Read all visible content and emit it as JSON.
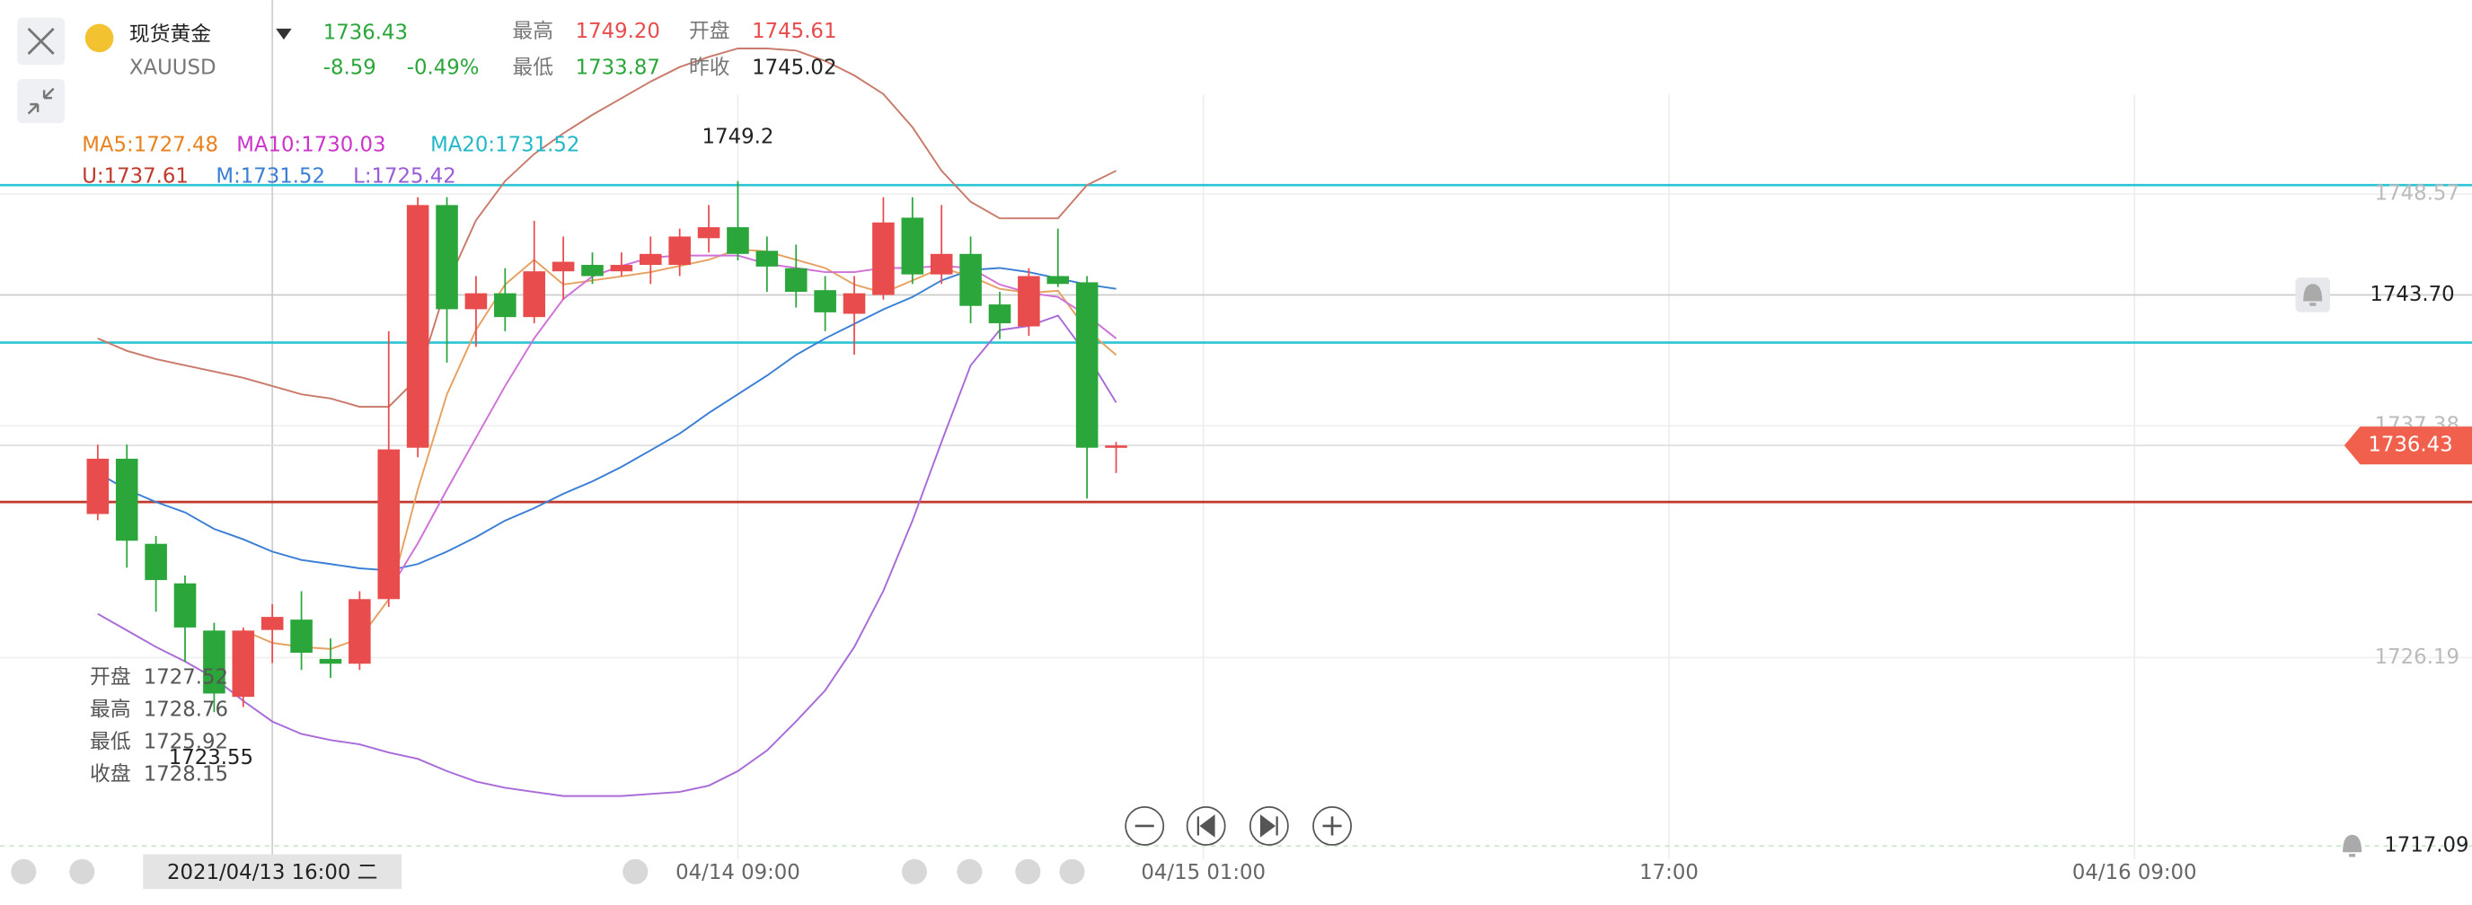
{
  "header": {
    "name": "现货黄金",
    "symbol": "XAUUSD",
    "change": "-8.59",
    "change_pct": "-0.49%",
    "high_label": "最高",
    "high": "1749.20",
    "open_label": "开盘",
    "open": "1745.61",
    "low_label": "最低",
    "low": "1733.87",
    "prev_close_label": "昨收",
    "prev_close": "1745.02"
  },
  "indicators": [
    {
      "text": "MA5:1727.48",
      "color": "#e8821e"
    },
    {
      "text": "MA10:1730.03",
      "color": "#cc33cc"
    },
    {
      "text": "MA20:1731.52",
      "color": "#22b8c8"
    },
    {
      "text": "U:1737.61",
      "color": "#c0392b"
    },
    {
      "text": "M:1731.52",
      "color": "#3a7fd5"
    },
    {
      "text": "L:1725.42",
      "color": "#9a5cd6"
    }
  ],
  "info_panel": {
    "labels": [
      "开盘",
      "最高",
      "最低",
      "收盘"
    ]
  },
  "chart_data": {
    "type": "candlestick",
    "up_color": "#e84c4c",
    "down_color": "#2aa63a",
    "xlim": [
      -3.36,
      81.6
    ],
    "ylim": [
      1714.25,
      1757.93
    ],
    "xticks": [
      {
        "value": 6,
        "label": "2021/04/13 16:00 二"
      },
      {
        "value": 22,
        "label": "04/14 09:00"
      },
      {
        "value": 38,
        "label": "04/15 01:00"
      },
      {
        "value": 54,
        "label": "17:00"
      },
      {
        "value": 70,
        "label": "04/16 09:00"
      }
    ],
    "yticks": [
      1748.57,
      1737.38,
      1726.19
    ],
    "last_price": 1736.43,
    "alerts": [
      {
        "value": 1743.7,
        "label": "1743.70"
      },
      1717.09
    ],
    "hlines": [
      {
        "value": 1749.0,
        "color": "#2bc4d4"
      },
      {
        "value": 1741.4,
        "color": "#2bc4d4"
      },
      {
        "value": 1733.7,
        "color": "#c0392b"
      }
    ],
    "open": [
      1733.12,
      1735.79,
      1731.68,
      1729.77,
      1727.49,
      1724.29,
      1727.52,
      1728.02,
      1726.12,
      1725.89,
      1729.01,
      1736.32,
      1748.04,
      1743.01,
      1743.78,
      1742.63,
      1744.84,
      1745.15,
      1744.84,
      1745.15,
      1745.15,
      1746.44,
      1746.97,
      1745.83,
      1744.99,
      1743.93,
      1742.79,
      1743.7,
      1747.43,
      1744.69,
      1745.68,
      1743.24,
      1742.18,
      1744.61,
      1744.31,
      1736.32
    ],
    "high": [
      1736.47,
      1736.47,
      1732.06,
      1730.15,
      1727.87,
      1727.64,
      1728.76,
      1729.39,
      1727.11,
      1729.39,
      1741.95,
      1748.42,
      1748.42,
      1744.61,
      1744.99,
      1747.28,
      1746.52,
      1745.75,
      1745.75,
      1746.52,
      1746.9,
      1748.04,
      1749.2,
      1746.52,
      1746.13,
      1744.61,
      1744.61,
      1748.42,
      1748.42,
      1748.04,
      1746.52,
      1743.85,
      1744.99,
      1746.9,
      1744.61,
      1736.6
    ],
    "low": [
      1732.82,
      1730.53,
      1728.4,
      1725.97,
      1723.55,
      1723.8,
      1725.92,
      1725.59,
      1725.21,
      1725.59,
      1728.63,
      1735.86,
      1740.43,
      1741.19,
      1741.95,
      1742.33,
      1743.47,
      1744.23,
      1744.61,
      1744.23,
      1744.61,
      1745.75,
      1745.37,
      1743.85,
      1743.09,
      1741.95,
      1740.81,
      1743.47,
      1744.23,
      1744.23,
      1742.33,
      1741.57,
      1741.72,
      1744.08,
      1733.87,
      1735.1
    ],
    "close": [
      1735.79,
      1731.83,
      1729.93,
      1727.64,
      1724.45,
      1727.49,
      1728.15,
      1726.42,
      1725.89,
      1729.01,
      1736.24,
      1748.04,
      1743.01,
      1743.78,
      1742.63,
      1744.84,
      1745.3,
      1744.61,
      1745.15,
      1745.68,
      1746.52,
      1746.97,
      1745.68,
      1745.07,
      1743.85,
      1742.86,
      1743.78,
      1747.2,
      1744.69,
      1745.68,
      1743.17,
      1742.33,
      1744.61,
      1744.23,
      1736.32,
      1736.43
    ],
    "lines": [
      {
        "color": "#c97a6a",
        "values": [
          1741.6,
          1741.0,
          1740.6,
          1740.3,
          1740.0,
          1739.7,
          1739.3,
          1738.9,
          1738.7,
          1738.3,
          1738.3,
          1739.7,
          1744.2,
          1747.3,
          1749.2,
          1750.5,
          1751.5,
          1752.4,
          1753.2,
          1754.0,
          1754.7,
          1755.2,
          1755.6,
          1755.6,
          1755.5,
          1755.0,
          1754.3,
          1753.4,
          1751.8,
          1749.7,
          1748.2,
          1747.4,
          1747.4,
          1747.4,
          1749.0,
          1749.7
        ]
      },
      {
        "color": "#3a7fd5",
        "values": [
          1735.1,
          1734.3,
          1733.7,
          1733.2,
          1732.4,
          1731.9,
          1731.3,
          1730.9,
          1730.7,
          1730.5,
          1730.4,
          1730.7,
          1731.3,
          1732.0,
          1732.8,
          1733.4,
          1734.1,
          1734.7,
          1735.4,
          1736.2,
          1737.0,
          1738.0,
          1738.9,
          1739.8,
          1740.8,
          1741.6,
          1742.3,
          1743.0,
          1743.6,
          1744.4,
          1744.9,
          1745.0,
          1744.8,
          1744.5,
          1744.2,
          1744.0
        ]
      },
      {
        "color": "#a86ad8",
        "values": [
          1728.3,
          1727.5,
          1726.7,
          1726.0,
          1725.2,
          1724.1,
          1723.1,
          1722.5,
          1722.2,
          1722.0,
          1721.6,
          1721.3,
          1720.7,
          1720.2,
          1719.9,
          1719.7,
          1719.5,
          1719.5,
          1719.5,
          1719.6,
          1719.7,
          1720.0,
          1720.7,
          1721.7,
          1723.1,
          1724.6,
          1726.7,
          1729.4,
          1732.8,
          1736.6,
          1740.3,
          1742.0,
          1742.2,
          1742.7,
          1740.8,
          1738.5
        ]
      },
      {
        "color": "#e8a060",
        "values": [
          null,
          null,
          null,
          null,
          null,
          1727.5,
          1726.9,
          1726.7,
          1726.6,
          1727.1,
          1729.0,
          1734.3,
          1738.9,
          1742.0,
          1744.2,
          1745.4,
          1744.2,
          1744.4,
          1744.6,
          1744.8,
          1745.1,
          1745.4,
          1745.9,
          1745.8,
          1745.4,
          1745.0,
          1744.2,
          1743.8,
          1744.4,
          1745.0,
          1744.6,
          1744.0,
          1743.8,
          1743.9,
          1742.0,
          1740.8
        ]
      },
      {
        "color": "#d070d8",
        "values": [
          null,
          null,
          null,
          null,
          null,
          null,
          null,
          null,
          null,
          null,
          1729.4,
          1731.7,
          1734.3,
          1736.8,
          1739.3,
          1741.6,
          1743.5,
          1744.6,
          1745.1,
          1745.5,
          1745.6,
          1745.6,
          1745.6,
          1745.2,
          1745.0,
          1744.8,
          1744.8,
          1745.0,
          1745.0,
          1745.1,
          1745.0,
          1744.2,
          1743.8,
          1743.6,
          1742.7,
          1741.6
        ]
      }
    ]
  }
}
